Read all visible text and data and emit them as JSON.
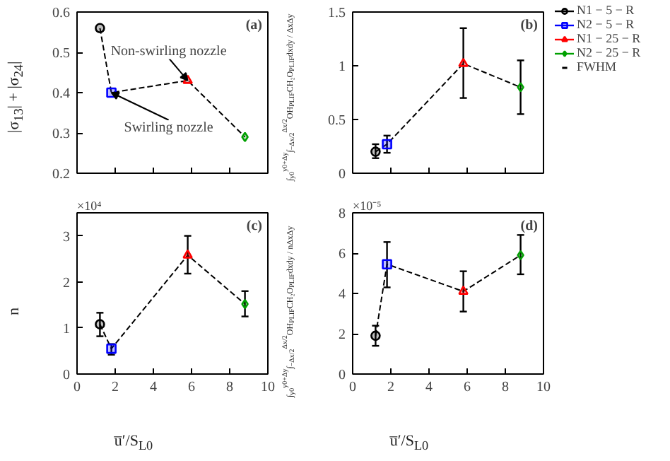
{
  "chart_data": [
    {
      "type": "scatter",
      "ylabel": "|σ$_{13}$| + |σ$_{24}$|",
      "xlim": [
        0,
        10
      ],
      "xticks": [
        0,
        2,
        4,
        6,
        8,
        10
      ],
      "ylim": [
        0.2,
        0.6
      ],
      "yticks": [
        0.2,
        0.3,
        0.4,
        0.5,
        0.6
      ],
      "tick_labels": "y",
      "grid": false,
      "annotations": [
        "(a)",
        {
          "text": "Non-swirling nozzle",
          "x": 5.8,
          "y": 0.43
        },
        {
          "text": "Swirling nozzle",
          "x": 1.8,
          "y": 0.4
        }
      ],
      "series": [
        {
          "type": "line",
          "color": "#000000",
          "line_style": "dashed",
          "marker": "none",
          "x": [
            1.2,
            1.8,
            5.8,
            8.8
          ],
          "values": [
            0.56,
            0.4,
            0.43,
            0.29
          ]
        },
        {
          "color": "#000000",
          "marker": "circle",
          "x": [
            1.2
          ],
          "values": [
            0.56
          ]
        },
        {
          "color": "#0000ff",
          "marker": "square",
          "x": [
            1.8
          ],
          "values": [
            0.4
          ]
        },
        {
          "color": "#ff0000",
          "marker": "triangle",
          "x": [
            5.8
          ],
          "values": [
            0.43
          ]
        },
        {
          "color": "#00a000",
          "marker": "diamond",
          "x": [
            8.8
          ],
          "values": [
            0.29
          ]
        }
      ]
    },
    {
      "type": "scatter",
      "ylabel": "∫$_{y0}$$^{y0+Δy}$∫$_{−Δx/2}$$^{Δx/2}$OH$_{PLIF}$CH₂O$_{PLIF}$dxdy / ΔxΔy",
      "xlim": [
        0,
        10
      ],
      "xticks": [
        0,
        2,
        4,
        6,
        8,
        10
      ],
      "ylim": [
        0,
        1.5
      ],
      "yticks": [
        0,
        0.5,
        1,
        1.5
      ],
      "tick_labels": "y",
      "grid": false,
      "legend": "right",
      "annotations": [
        "(b)",
        "FWHM"
      ],
      "series": [
        {
          "type": "line",
          "color": "#000000",
          "line_style": "dashed",
          "marker": "none",
          "x": [
            1.2,
            1.8,
            5.8,
            8.8
          ],
          "values": [
            0.2,
            0.27,
            1.02,
            0.8
          ]
        },
        {
          "name": "N1 − 5 − R",
          "color": "#000000",
          "marker": "circle",
          "x": [
            1.2
          ],
          "values": [
            0.2
          ],
          "errors": [
            [
              0.14,
              0.27
            ]
          ]
        },
        {
          "name": "N2 − 5 − R",
          "color": "#0000ff",
          "marker": "square",
          "x": [
            1.8
          ],
          "values": [
            0.27
          ],
          "errors": [
            [
              0.19,
              0.35
            ]
          ]
        },
        {
          "name": "N1 − 25 − R",
          "color": "#ff0000",
          "marker": "triangle",
          "x": [
            5.8
          ],
          "values": [
            1.02
          ],
          "errors": [
            [
              0.7,
              1.35
            ]
          ]
        },
        {
          "name": "N2 − 25 − R",
          "color": "#00a000",
          "marker": "diamond",
          "x": [
            8.8
          ],
          "values": [
            0.8
          ],
          "errors": [
            [
              0.55,
              1.05
            ]
          ]
        }
      ]
    },
    {
      "type": "scatter",
      "xlabel": "u̅′/S$_{L0}$",
      "ylabel": "n",
      "xlim": [
        0,
        10
      ],
      "xticks": [
        0,
        2,
        4,
        6,
        8,
        10
      ],
      "ylim": [
        0,
        3.5
      ],
      "yticks": [
        0,
        1,
        2,
        3
      ],
      "grid": false,
      "annotations": [
        "(c)",
        "×10⁴"
      ],
      "series": [
        {
          "type": "line",
          "color": "#000000",
          "line_style": "dashed",
          "marker": "none",
          "x": [
            1.2,
            1.8,
            5.8,
            8.8
          ],
          "values": [
            1.08,
            0.55,
            2.58,
            1.52
          ]
        },
        {
          "color": "#000000",
          "marker": "circle",
          "x": [
            1.2
          ],
          "values": [
            1.08
          ],
          "errors": [
            [
              0.82,
              1.33
            ]
          ]
        },
        {
          "color": "#0000ff",
          "marker": "square",
          "x": [
            1.8
          ],
          "values": [
            0.55
          ],
          "errors": [
            [
              0.42,
              0.65
            ]
          ]
        },
        {
          "color": "#ff0000",
          "marker": "triangle",
          "x": [
            5.8
          ],
          "values": [
            2.58
          ],
          "errors": [
            [
              2.18,
              3.0
            ]
          ]
        },
        {
          "color": "#00a000",
          "marker": "diamond",
          "x": [
            8.8
          ],
          "values": [
            1.52
          ],
          "errors": [
            [
              1.25,
              1.8
            ]
          ]
        }
      ]
    },
    {
      "type": "scatter",
      "xlabel": "u̅′/S$_{L0}$",
      "ylabel": "∫$_{y0}$$^{y0+Δy}$∫$_{−Δx/2}$$^{Δx/2}$OH$_{PLIF}$CH₂O$_{PLIF}$dxdy / nΔxΔy",
      "xlim": [
        0,
        10
      ],
      "xticks": [
        0,
        2,
        4,
        6,
        8,
        10
      ],
      "ylim": [
        0,
        8
      ],
      "yticks": [
        0,
        2,
        4,
        6,
        8
      ],
      "grid": false,
      "annotations": [
        "(d)",
        "×10⁻⁵"
      ],
      "series": [
        {
          "type": "line",
          "color": "#000000",
          "line_style": "dashed",
          "marker": "none",
          "x": [
            1.2,
            1.8,
            5.8,
            8.8
          ],
          "values": [
            1.9,
            5.45,
            4.1,
            5.9
          ]
        },
        {
          "color": "#000000",
          "marker": "circle",
          "x": [
            1.2
          ],
          "values": [
            1.9
          ],
          "errors": [
            [
              1.4,
              2.4
            ]
          ]
        },
        {
          "color": "#0000ff",
          "marker": "square",
          "x": [
            1.8
          ],
          "values": [
            5.45
          ],
          "errors": [
            [
              4.3,
              6.55
            ]
          ]
        },
        {
          "color": "#ff0000",
          "marker": "triangle",
          "x": [
            5.8
          ],
          "values": [
            4.1
          ],
          "errors": [
            [
              3.1,
              5.1
            ]
          ]
        },
        {
          "color": "#00a000",
          "marker": "diamond",
          "x": [
            8.8
          ],
          "values": [
            5.9
          ],
          "errors": [
            [
              4.95,
              6.9
            ]
          ]
        }
      ]
    }
  ]
}
